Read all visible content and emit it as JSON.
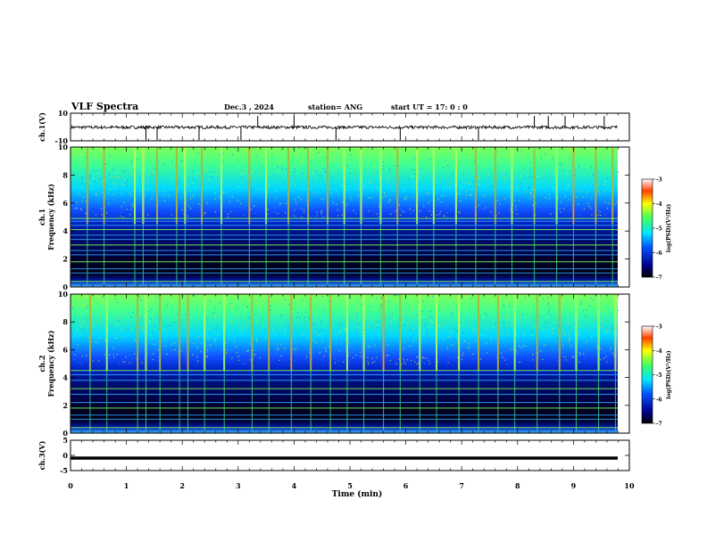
{
  "header": {
    "title": "VLF Spectra",
    "date": "Dec.3 , 2024",
    "station": "station= ANG",
    "start_ut": "start UT = 17: 0 : 0"
  },
  "chart_data": [
    {
      "type": "line",
      "id": "ch1-waveform",
      "ylabel": "ch.1(V)",
      "ylim": [
        -10,
        10
      ],
      "yticks": [
        "10",
        "-10"
      ],
      "xlim": [
        0,
        10
      ],
      "baseline": -0.2,
      "description_of_signal": "noisy voltage trace near zero with impulsive spikes",
      "spike_times_min": [
        1.35,
        1.55,
        2.3,
        3.05,
        3.35,
        4.0,
        4.75,
        5.9,
        7.3,
        8.3,
        8.55,
        8.85,
        9.55
      ]
    },
    {
      "type": "heatmap",
      "id": "ch1-spectrogram",
      "ylabel_line1": "ch.1",
      "ylabel_line2": "Frequency (kHz)",
      "ylim": [
        0,
        10
      ],
      "yticks": [
        "0",
        "2",
        "4",
        "6",
        "8",
        "10"
      ],
      "xlim": [
        0,
        9.8
      ],
      "colorbar": {
        "label": "log(PSD)(V²/Hz)",
        "ticks": [
          "-3",
          "-4",
          "-5",
          "-6",
          "-7"
        ],
        "range": [
          -7,
          -3
        ]
      },
      "narrowband_lines_khz": [
        0.4,
        1.0,
        1.3,
        1.8,
        2.3,
        2.6,
        3.0,
        3.4,
        3.7,
        4.1,
        4.4,
        4.7,
        4.9
      ],
      "sferic_times_min": [
        0.3,
        0.6,
        1.15,
        1.3,
        1.55,
        1.9,
        2.05,
        2.35,
        2.7,
        3.2,
        3.5,
        3.9,
        4.25,
        4.6,
        4.9,
        5.2,
        5.55,
        5.85,
        6.2,
        6.5,
        6.9,
        7.25,
        7.6,
        7.9,
        8.3,
        8.7,
        9.0,
        9.4,
        9.7
      ]
    },
    {
      "type": "heatmap",
      "id": "ch2-spectrogram",
      "ylabel_line1": "ch.2",
      "ylabel_line2": "Frequency (kHz)",
      "ylim": [
        0,
        10
      ],
      "yticks": [
        "0",
        "2",
        "4",
        "6",
        "8",
        "10"
      ],
      "xlim": [
        0,
        9.8
      ],
      "colorbar": {
        "label": "log(PSD)(V²/Hz)",
        "ticks": [
          "-3",
          "-4",
          "-5",
          "-6",
          "-7"
        ],
        "range": [
          -7,
          -3
        ]
      },
      "narrowband_lines_khz": [
        0.4,
        1.0,
        1.3,
        1.8,
        2.2,
        2.8,
        3.2,
        3.8,
        4.2,
        4.5
      ],
      "sferic_times_min": [
        0.35,
        0.65,
        1.2,
        1.35,
        1.6,
        1.95,
        2.1,
        2.4,
        2.75,
        3.25,
        3.55,
        3.95,
        4.3,
        4.65,
        4.95,
        5.25,
        5.6,
        5.9,
        6.25,
        6.55,
        6.95,
        7.3,
        7.65,
        7.95,
        8.35,
        8.75,
        9.05,
        9.45,
        9.75
      ]
    },
    {
      "type": "line",
      "id": "ch3-waveform",
      "ylabel": "ch.3(V)",
      "ylim": [
        -5,
        5
      ],
      "yticks": [
        "5",
        "0",
        "-5"
      ],
      "xlim": [
        0,
        10
      ],
      "baseline": 0
    }
  ],
  "xaxis": {
    "label": "Time (min)",
    "ticks": [
      "0",
      "1",
      "2",
      "3",
      "4",
      "5",
      "6",
      "7",
      "8",
      "9",
      "10"
    ]
  }
}
